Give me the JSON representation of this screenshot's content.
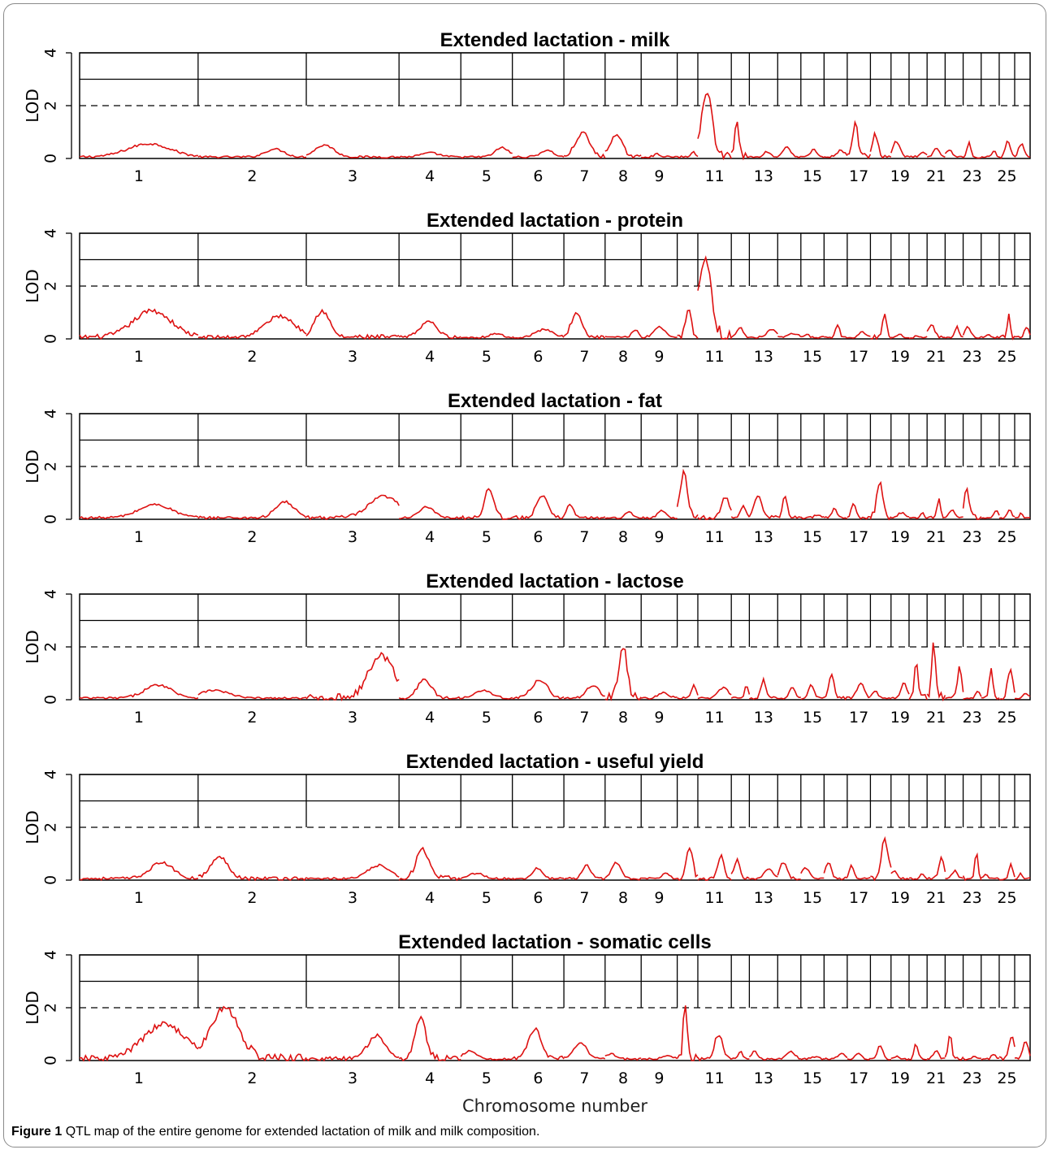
{
  "caption": {
    "label": "Figure 1",
    "text": "QTL map of the entire genome for extended lactation of milk and milk composition."
  },
  "colors": {
    "curve": "#dd1111",
    "grid": "#000000",
    "threshold": "#000000"
  },
  "chart_data": {
    "type": "line",
    "xlabel": "Chromosome number",
    "ylabel": "LOD",
    "ylim": [
      0,
      4
    ],
    "yticks": [
      "0",
      "2",
      "4"
    ],
    "threshold_line": {
      "value": 2,
      "style": "dashed"
    },
    "reference_lines": [
      3,
      4
    ],
    "chromosome_widths": [
      2.3,
      2.1,
      1.8,
      1.2,
      1.0,
      1.0,
      0.8,
      0.7,
      0.7,
      0.4,
      0.65,
      0.35,
      0.55,
      0.45,
      0.45,
      0.45,
      0.45,
      0.4,
      0.35,
      0.35,
      0.35,
      0.35,
      0.35,
      0.35,
      0.3,
      0.3
    ],
    "xtick_labels": [
      {
        "chr": 1,
        "label": "1"
      },
      {
        "chr": 2,
        "label": "2"
      },
      {
        "chr": 3,
        "label": "3"
      },
      {
        "chr": 4,
        "label": "4"
      },
      {
        "chr": 5,
        "label": "5"
      },
      {
        "chr": 6,
        "label": "6"
      },
      {
        "chr": 7,
        "label": "7"
      },
      {
        "chr": 8,
        "label": "8"
      },
      {
        "chr": 9,
        "label": "9"
      },
      {
        "chr": 11,
        "label": "11"
      },
      {
        "chr": 13,
        "label": "13"
      },
      {
        "chr": 15,
        "label": "15"
      },
      {
        "chr": 17,
        "label": "17"
      },
      {
        "chr": 19,
        "label": "19"
      },
      {
        "chr": 21,
        "label": "21"
      },
      {
        "chr": 23,
        "label": "23"
      },
      {
        "chr": 25,
        "label": "25"
      }
    ],
    "panels": [
      {
        "title": "Extended lactation - milk",
        "peaks": [
          [
            1,
            0.5
          ],
          [
            2,
            0.3
          ],
          [
            3,
            0.45
          ],
          [
            4,
            0.15
          ],
          [
            5,
            0.35
          ],
          [
            6,
            0.25
          ],
          [
            7,
            0.9
          ],
          [
            8,
            0.8
          ],
          [
            9,
            0.1
          ],
          [
            10,
            0.2
          ],
          [
            11,
            2.6
          ],
          [
            12,
            1.5
          ],
          [
            13,
            0.2
          ],
          [
            14,
            0.4
          ],
          [
            15,
            0.3
          ],
          [
            16,
            0.25
          ],
          [
            17,
            1.4
          ],
          [
            18,
            0.85
          ],
          [
            19,
            0.6
          ],
          [
            20,
            0.15
          ],
          [
            21,
            0.35
          ],
          [
            22,
            0.25
          ],
          [
            23,
            0.6
          ],
          [
            24,
            0.25
          ],
          [
            25,
            0.6
          ],
          [
            26,
            0.5
          ]
        ]
      },
      {
        "title": "Extended lactation - protein",
        "peaks": [
          [
            1,
            1.0
          ],
          [
            2,
            0.8
          ],
          [
            3,
            1.0
          ],
          [
            4,
            0.6
          ],
          [
            5,
            0.15
          ],
          [
            6,
            0.3
          ],
          [
            7,
            0.9
          ],
          [
            8,
            0.3
          ],
          [
            9,
            0.4
          ],
          [
            10,
            1.1
          ],
          [
            11,
            3.0
          ],
          [
            12,
            0.4
          ],
          [
            13,
            0.3
          ],
          [
            14,
            0.15
          ],
          [
            15,
            0.1
          ],
          [
            16,
            0.5
          ],
          [
            17,
            0.2
          ],
          [
            18,
            0.95
          ],
          [
            19,
            0.1
          ],
          [
            20,
            0.1
          ],
          [
            21,
            0.5
          ],
          [
            22,
            0.4
          ],
          [
            23,
            0.4
          ],
          [
            24,
            0.1
          ],
          [
            25,
            0.9
          ],
          [
            26,
            0.4
          ]
        ]
      },
      {
        "title": "Extended lactation - fat",
        "peaks": [
          [
            1,
            0.5
          ],
          [
            2,
            0.6
          ],
          [
            3,
            0.8
          ],
          [
            4,
            0.4
          ],
          [
            5,
            1.1
          ],
          [
            6,
            0.8
          ],
          [
            7,
            0.5
          ],
          [
            8,
            0.2
          ],
          [
            9,
            0.3
          ],
          [
            10,
            1.8
          ],
          [
            11,
            0.8
          ],
          [
            12,
            0.5
          ],
          [
            13,
            0.8
          ],
          [
            14,
            0.8
          ],
          [
            15,
            0.1
          ],
          [
            16,
            0.4
          ],
          [
            17,
            0.5
          ],
          [
            18,
            1.3
          ],
          [
            19,
            0.2
          ],
          [
            20,
            0.2
          ],
          [
            21,
            0.7
          ],
          [
            22,
            0.3
          ],
          [
            23,
            1.1
          ],
          [
            24,
            0.3
          ],
          [
            25,
            0.3
          ],
          [
            26,
            0.2
          ]
        ]
      },
      {
        "title": "Extended lactation - lactose",
        "peaks": [
          [
            1,
            0.5
          ],
          [
            2,
            0.3
          ],
          [
            3,
            1.6
          ],
          [
            4,
            0.7
          ],
          [
            5,
            0.3
          ],
          [
            6,
            0.7
          ],
          [
            7,
            0.5
          ],
          [
            8,
            1.9
          ],
          [
            9,
            0.2
          ],
          [
            10,
            0.5
          ],
          [
            11,
            0.4
          ],
          [
            12,
            0.5
          ],
          [
            13,
            0.7
          ],
          [
            14,
            0.4
          ],
          [
            15,
            0.5
          ],
          [
            16,
            0.9
          ],
          [
            17,
            0.6
          ],
          [
            18,
            0.3
          ],
          [
            19,
            0.6
          ],
          [
            20,
            1.6
          ],
          [
            21,
            2.0
          ],
          [
            22,
            1.2
          ],
          [
            23,
            0.3
          ],
          [
            24,
            1.1
          ],
          [
            25,
            1.0
          ],
          [
            26,
            0.2
          ]
        ]
      },
      {
        "title": "Extended lactation - useful yield",
        "peaks": [
          [
            1,
            0.6
          ],
          [
            2,
            0.8
          ],
          [
            3,
            0.5
          ],
          [
            4,
            1.1
          ],
          [
            5,
            0.2
          ],
          [
            6,
            0.4
          ],
          [
            7,
            0.5
          ],
          [
            8,
            0.6
          ],
          [
            9,
            0.2
          ],
          [
            10,
            1.2
          ],
          [
            11,
            0.9
          ],
          [
            12,
            0.7
          ],
          [
            13,
            0.4
          ],
          [
            14,
            0.6
          ],
          [
            15,
            0.4
          ],
          [
            16,
            0.6
          ],
          [
            17,
            0.5
          ],
          [
            18,
            1.4
          ],
          [
            19,
            0.3
          ],
          [
            20,
            0.2
          ],
          [
            21,
            0.8
          ],
          [
            22,
            0.3
          ],
          [
            23,
            1.1
          ],
          [
            24,
            0.2
          ],
          [
            25,
            0.6
          ],
          [
            26,
            0.2
          ]
        ]
      },
      {
        "title": "Extended lactation - somatic cells",
        "peaks": [
          [
            1,
            1.3
          ],
          [
            2,
            1.9
          ],
          [
            3,
            0.9
          ],
          [
            4,
            1.5
          ],
          [
            5,
            0.3
          ],
          [
            6,
            1.1
          ],
          [
            7,
            0.6
          ],
          [
            8,
            0.2
          ],
          [
            9,
            0.1
          ],
          [
            10,
            2.2
          ],
          [
            11,
            0.9
          ],
          [
            12,
            0.3
          ],
          [
            13,
            0.3
          ],
          [
            14,
            0.3
          ],
          [
            15,
            0.1
          ],
          [
            16,
            0.2
          ],
          [
            17,
            0.2
          ],
          [
            18,
            0.5
          ],
          [
            19,
            0.1
          ],
          [
            20,
            0.6
          ],
          [
            21,
            0.3
          ],
          [
            22,
            0.9
          ],
          [
            23,
            0.1
          ],
          [
            24,
            0.2
          ],
          [
            25,
            0.9
          ],
          [
            26,
            0.7
          ]
        ]
      }
    ]
  }
}
